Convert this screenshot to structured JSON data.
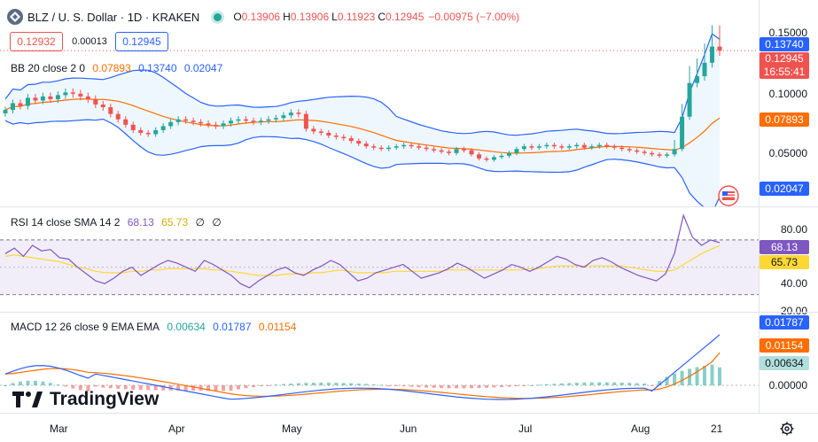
{
  "header": {
    "title": "BLZ / U. S. Dollar · 1D · KRAKEN",
    "open_label": "O",
    "open": "0.13906",
    "high_label": "H",
    "high": "0.13906",
    "low_label": "L",
    "low": "0.11923",
    "close_label": "C",
    "close": "0.12945",
    "change": "−0.00975 (−7.00%)"
  },
  "trade": {
    "sell_price": "0.12932",
    "spread": "0.00013",
    "buy_price": "0.12945"
  },
  "bb_legend": {
    "name": "BB 20 close 2 0",
    "basis": "0.07893",
    "upper": "0.13740",
    "lower": "0.02047"
  },
  "rsi_legend": {
    "name": "RSI 14 close SMA 14 2",
    "rsi": "68.13",
    "sma": "65.73",
    "extra1": "∅",
    "extra2": "∅"
  },
  "macd_legend": {
    "name": "MACD 12 26 close 9 EMA EMA",
    "hist": "0.00634",
    "macd": "0.01787",
    "signal": "0.01154"
  },
  "price_axis": [
    "0.15000",
    "0.10000",
    "0.05000"
  ],
  "price_tags": {
    "upper": "0.13740",
    "last": "0.12945",
    "countdown": "16:55:41",
    "basis": "0.07893",
    "lower": "0.02047"
  },
  "rsi_axis": [
    "80.00",
    "40.00",
    "20.00"
  ],
  "rsi_tags": {
    "rsi": "68.13",
    "sma": "65.73"
  },
  "macd_axis": [
    "0.00000"
  ],
  "macd_tags": {
    "macd": "0.01787",
    "signal": "0.01154",
    "hist": "0.00634"
  },
  "time_axis": [
    "Mar",
    "Apr",
    "May",
    "Jun",
    "Jul",
    "Aug",
    "21"
  ],
  "brand": "TradingView",
  "colors": {
    "up": "#26a69a",
    "down": "#ef5350",
    "bb_band": "#2962ff",
    "bb_basis": "#ff6d00",
    "rsi_line": "#7e57c2",
    "rsi_sma": "#fdd835",
    "macd_line": "#2962ff",
    "signal_line": "#ff6d00"
  },
  "chart_data": [
    {
      "type": "candlestick",
      "title": "BLZ / U. S. Dollar · 1D · KRAKEN",
      "x_labels": [
        "Mar",
        "Apr",
        "May",
        "Jun",
        "Jul",
        "Aug",
        "21"
      ],
      "ylim": [
        0.02,
        0.16
      ],
      "close": [
        0.085,
        0.09,
        0.088,
        0.094,
        0.092,
        0.095,
        0.093,
        0.096,
        0.098,
        0.097,
        0.095,
        0.093,
        0.089,
        0.087,
        0.082,
        0.078,
        0.074,
        0.07,
        0.068,
        0.067,
        0.07,
        0.073,
        0.076,
        0.078,
        0.077,
        0.076,
        0.075,
        0.074,
        0.073,
        0.075,
        0.077,
        0.078,
        0.077,
        0.076,
        0.077,
        0.078,
        0.079,
        0.081,
        0.083,
        0.082,
        0.071,
        0.069,
        0.068,
        0.066,
        0.065,
        0.064,
        0.062,
        0.06,
        0.058,
        0.057,
        0.056,
        0.057,
        0.058,
        0.059,
        0.058,
        0.057,
        0.056,
        0.055,
        0.054,
        0.053,
        0.056,
        0.055,
        0.052,
        0.049,
        0.048,
        0.05,
        0.051,
        0.053,
        0.056,
        0.058,
        0.057,
        0.058,
        0.059,
        0.058,
        0.057,
        0.058,
        0.059,
        0.057,
        0.058,
        0.059,
        0.058,
        0.057,
        0.056,
        0.055,
        0.054,
        0.053,
        0.052,
        0.051,
        0.052,
        0.056,
        0.08,
        0.105,
        0.11,
        0.12,
        0.132,
        0.129
      ],
      "bb_upper_end": 0.1374,
      "bb_basis_end": 0.07893,
      "bb_lower_end": 0.02047
    },
    {
      "type": "line",
      "title": "RSI 14 close SMA 14 2",
      "ylim": [
        20,
        90
      ],
      "series": [
        {
          "name": "RSI",
          "values": [
            60,
            64,
            58,
            66,
            62,
            63,
            57,
            56,
            50,
            45,
            40,
            38,
            42,
            47,
            50,
            44,
            48,
            52,
            55,
            53,
            50,
            47,
            55,
            52,
            48,
            44,
            38,
            35,
            40,
            44,
            48,
            50,
            46,
            44,
            48,
            51,
            55,
            52,
            46,
            40,
            42,
            46,
            48,
            50,
            52,
            47,
            42,
            44,
            46,
            49,
            53,
            50,
            46,
            42,
            45,
            48,
            52,
            50,
            47,
            50,
            54,
            58,
            56,
            52,
            50,
            55,
            57,
            54,
            50,
            47,
            44,
            42,
            40,
            45,
            60,
            88,
            72,
            66,
            70,
            68
          ]
        },
        {
          "name": "SMA",
          "values": [
            58,
            59,
            58,
            57,
            56,
            55,
            54,
            52,
            50,
            49,
            47,
            46,
            46,
            46,
            47,
            47,
            48,
            48,
            49,
            49,
            49,
            49,
            49,
            48,
            48,
            47,
            46,
            45,
            44,
            44,
            44,
            45,
            45,
            45,
            46,
            46,
            47,
            48,
            47,
            46,
            46,
            46,
            46,
            47,
            47,
            47,
            47,
            47,
            47,
            48,
            48,
            48,
            48,
            48,
            48,
            48,
            48,
            48,
            49,
            49,
            50,
            51,
            51,
            51,
            51,
            51,
            51,
            51,
            51,
            50,
            49,
            48,
            47,
            47,
            48,
            52,
            56,
            60,
            63,
            65.73
          ]
        }
      ]
    },
    {
      "type": "bar",
      "title": "MACD 12 26 close 9 EMA EMA",
      "series": [
        {
          "name": "MACD",
          "end": 0.01787
        },
        {
          "name": "Signal",
          "end": 0.01154
        },
        {
          "name": "Histogram",
          "end": 0.00634
        }
      ]
    }
  ]
}
